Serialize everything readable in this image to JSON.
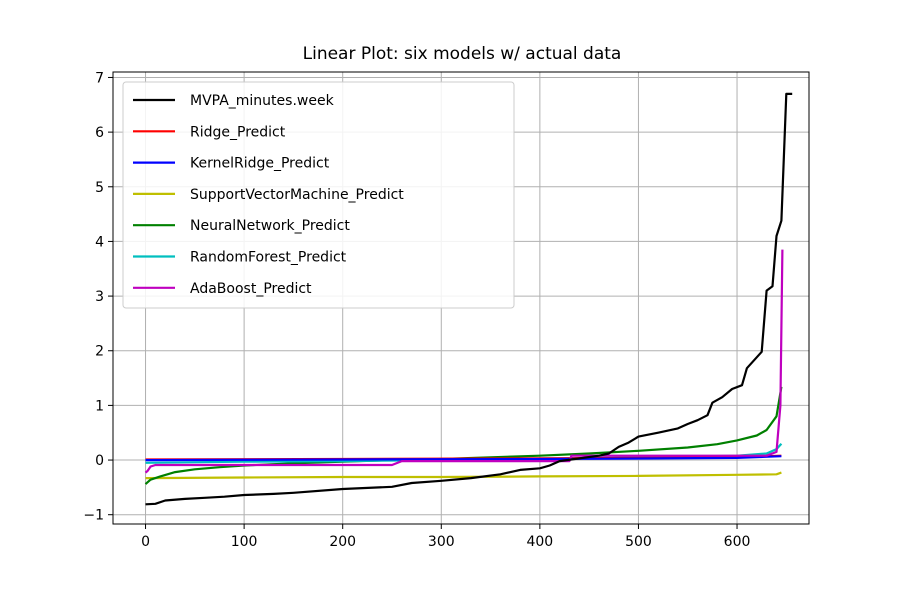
{
  "chart_data": {
    "type": "line",
    "title": "Linear Plot: six models w/ actual data",
    "xlabel": "",
    "ylabel": "",
    "xlim": [
      -33,
      673
    ],
    "ylim": [
      -1.17,
      7.1
    ],
    "x_ticks": [
      0,
      100,
      200,
      300,
      400,
      500,
      600
    ],
    "y_ticks": [
      -1,
      0,
      1,
      2,
      3,
      4,
      5,
      6,
      7
    ],
    "x_tick_labels": [
      "0",
      "100",
      "200",
      "300",
      "400",
      "500",
      "600"
    ],
    "y_tick_labels": [
      "−1",
      "0",
      "1",
      "2",
      "3",
      "4",
      "5",
      "6",
      "7"
    ],
    "grid": true,
    "legend_position": "upper-left",
    "series": [
      {
        "name": "MVPA_minutes.week",
        "color": "#000000",
        "points": [
          [
            0,
            -0.81
          ],
          [
            10,
            -0.8
          ],
          [
            20,
            -0.74
          ],
          [
            40,
            -0.71
          ],
          [
            60,
            -0.69
          ],
          [
            80,
            -0.67
          ],
          [
            100,
            -0.64
          ],
          [
            130,
            -0.62
          ],
          [
            150,
            -0.6
          ],
          [
            200,
            -0.53
          ],
          [
            250,
            -0.49
          ],
          [
            270,
            -0.42
          ],
          [
            300,
            -0.38
          ],
          [
            330,
            -0.33
          ],
          [
            360,
            -0.26
          ],
          [
            380,
            -0.18
          ],
          [
            400,
            -0.15
          ],
          [
            410,
            -0.1
          ],
          [
            420,
            -0.02
          ],
          [
            440,
            0.03
          ],
          [
            460,
            0.08
          ],
          [
            470,
            0.12
          ],
          [
            480,
            0.24
          ],
          [
            490,
            0.32
          ],
          [
            500,
            0.43
          ],
          [
            520,
            0.5
          ],
          [
            540,
            0.58
          ],
          [
            550,
            0.66
          ],
          [
            560,
            0.73
          ],
          [
            570,
            0.82
          ],
          [
            575,
            1.05
          ],
          [
            585,
            1.15
          ],
          [
            595,
            1.3
          ],
          [
            605,
            1.37
          ],
          [
            610,
            1.68
          ],
          [
            625,
            1.98
          ],
          [
            630,
            3.1
          ],
          [
            636,
            3.18
          ],
          [
            640,
            4.1
          ],
          [
            645,
            4.38
          ],
          [
            650,
            6.7
          ],
          [
            656,
            6.7
          ]
        ]
      },
      {
        "name": "Ridge_Predict",
        "color": "#ff0000",
        "points": [
          [
            0,
            0.01
          ],
          [
            200,
            0.02
          ],
          [
            400,
            0.03
          ],
          [
            600,
            0.05
          ],
          [
            645,
            0.08
          ]
        ]
      },
      {
        "name": "KernelRidge_Predict",
        "color": "#0000ff",
        "points": [
          [
            0,
            0.0
          ],
          [
            200,
            0.01
          ],
          [
            400,
            0.02
          ],
          [
            600,
            0.04
          ],
          [
            645,
            0.07
          ]
        ]
      },
      {
        "name": "SupportVectorMachine_Predict",
        "color": "#bfbf00",
        "points": [
          [
            0,
            -0.33
          ],
          [
            100,
            -0.32
          ],
          [
            200,
            -0.31
          ],
          [
            300,
            -0.31
          ],
          [
            400,
            -0.3
          ],
          [
            500,
            -0.29
          ],
          [
            600,
            -0.27
          ],
          [
            640,
            -0.26
          ],
          [
            645,
            -0.23
          ]
        ]
      },
      {
        "name": "NeuralNetwork_Predict",
        "color": "#008000",
        "points": [
          [
            0,
            -0.44
          ],
          [
            5,
            -0.36
          ],
          [
            15,
            -0.3
          ],
          [
            30,
            -0.22
          ],
          [
            50,
            -0.17
          ],
          [
            75,
            -0.13
          ],
          [
            100,
            -0.1
          ],
          [
            150,
            -0.06
          ],
          [
            200,
            -0.03
          ],
          [
            250,
            0.0
          ],
          [
            300,
            0.02
          ],
          [
            350,
            0.05
          ],
          [
            400,
            0.08
          ],
          [
            450,
            0.12
          ],
          [
            500,
            0.17
          ],
          [
            550,
            0.23
          ],
          [
            580,
            0.29
          ],
          [
            600,
            0.36
          ],
          [
            620,
            0.45
          ],
          [
            630,
            0.55
          ],
          [
            640,
            0.8
          ],
          [
            645,
            1.34
          ]
        ]
      },
      {
        "name": "RandomForest_Predict",
        "color": "#00bfbf",
        "points": [
          [
            0,
            -0.05
          ],
          [
            100,
            -0.03
          ],
          [
            200,
            -0.02
          ],
          [
            300,
            0.0
          ],
          [
            400,
            0.02
          ],
          [
            500,
            0.05
          ],
          [
            600,
            0.08
          ],
          [
            630,
            0.12
          ],
          [
            640,
            0.2
          ],
          [
            645,
            0.3
          ]
        ]
      },
      {
        "name": "AdaBoost_Predict",
        "color": "#bf00bf",
        "points": [
          [
            0,
            -0.23
          ],
          [
            2,
            -0.2
          ],
          [
            5,
            -0.12
          ],
          [
            10,
            -0.09
          ],
          [
            250,
            -0.09
          ],
          [
            260,
            -0.02
          ],
          [
            430,
            -0.02
          ],
          [
            432,
            0.08
          ],
          [
            630,
            0.08
          ],
          [
            640,
            0.15
          ],
          [
            644,
            1.0
          ],
          [
            646,
            3.85
          ]
        ]
      }
    ]
  }
}
